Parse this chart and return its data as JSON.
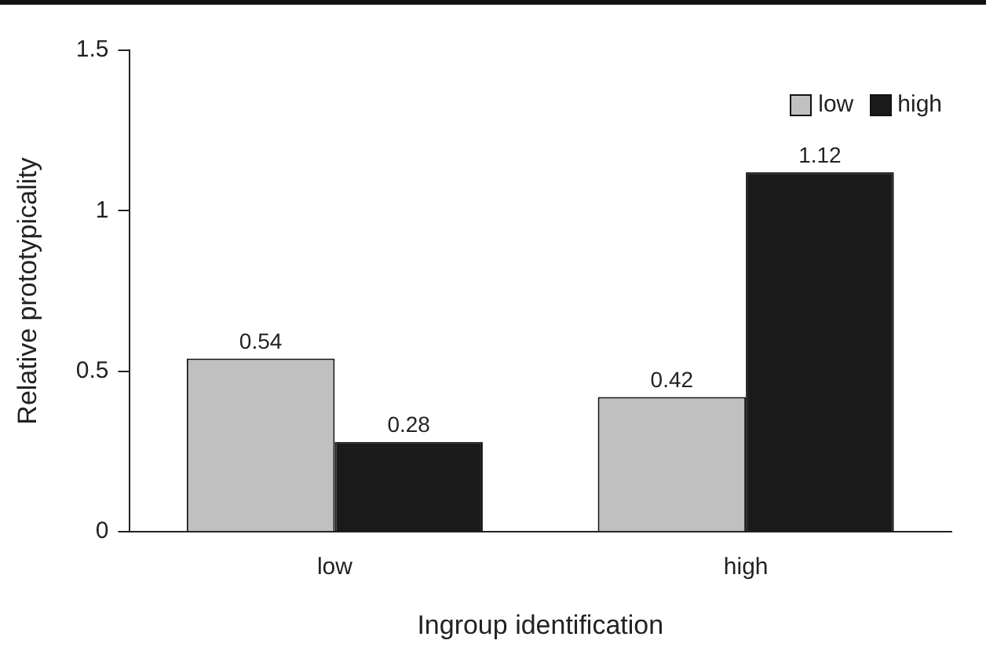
{
  "chart_data": {
    "type": "bar",
    "xlabel": "Ingroup identification",
    "ylabel": "Relative prototypicality",
    "categories": [
      "low",
      "high"
    ],
    "series": [
      {
        "name": "low",
        "color": "#c0c0c0",
        "values": [
          0.54,
          0.42
        ]
      },
      {
        "name": "high",
        "color": "#1a1a1a",
        "values": [
          0.28,
          1.12
        ]
      }
    ],
    "ylim": [
      0,
      1.5
    ],
    "yticks": [
      0,
      0.5,
      1,
      1.5
    ],
    "grid": false,
    "legend": "top right",
    "data_labels": true
  }
}
